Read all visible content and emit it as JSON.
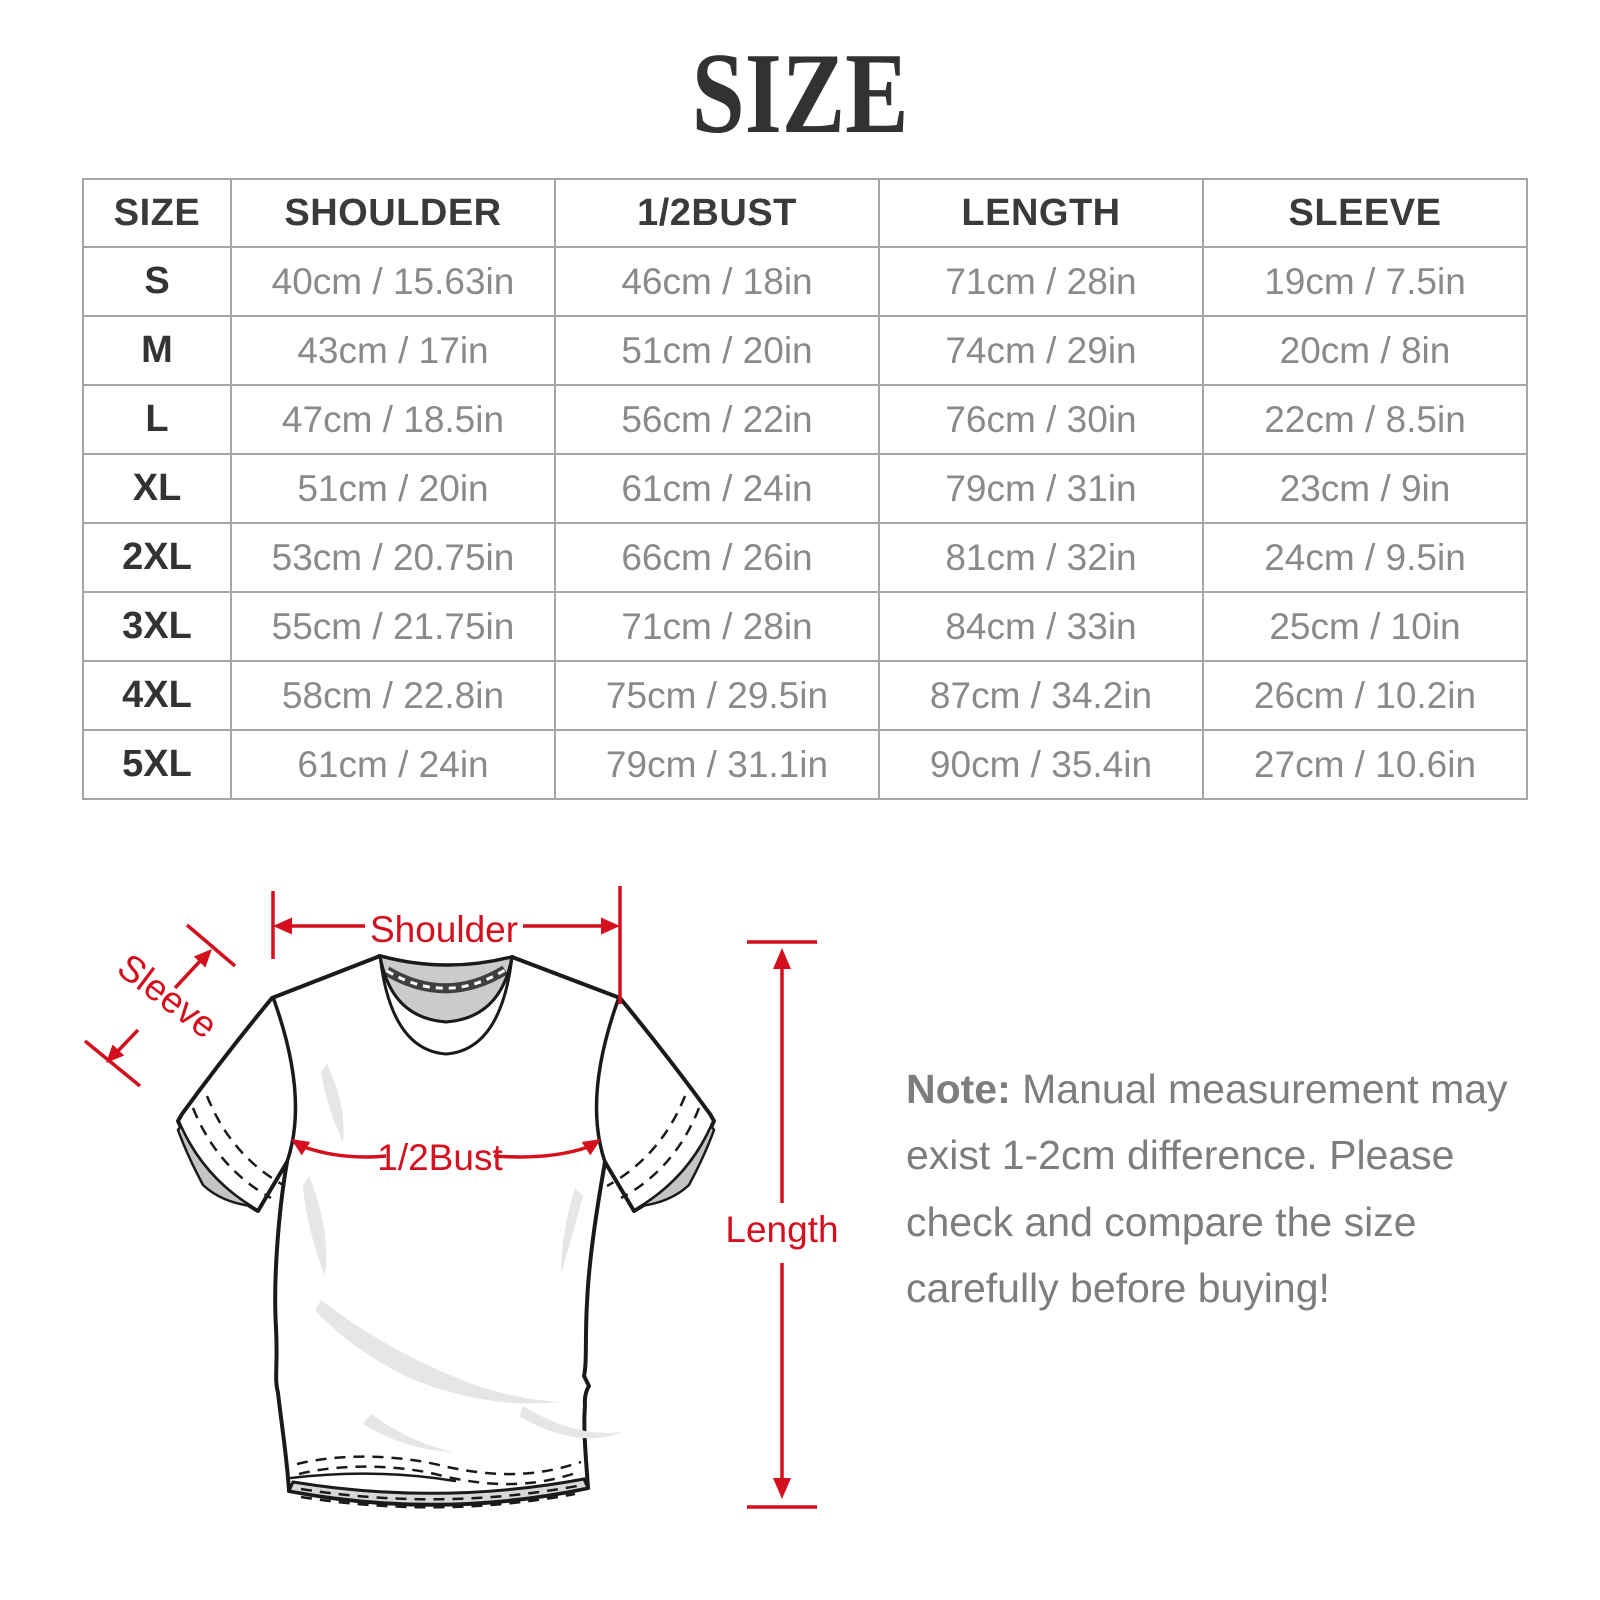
{
  "title": "SIZE",
  "table": {
    "columns": [
      "SIZE",
      "SHOULDER",
      "1/2BUST",
      "LENGTH",
      "SLEEVE"
    ],
    "rows": [
      [
        "S",
        "40cm / 15.63in",
        "46cm / 18in",
        "71cm / 28in",
        "19cm / 7.5in"
      ],
      [
        "M",
        "43cm / 17in",
        "51cm / 20in",
        "74cm / 29in",
        "20cm / 8in"
      ],
      [
        "L",
        "47cm / 18.5in",
        "56cm / 22in",
        "76cm / 30in",
        "22cm / 8.5in"
      ],
      [
        "XL",
        "51cm / 20in",
        "61cm / 24in",
        "79cm / 31in",
        "23cm / 9in"
      ],
      [
        "2XL",
        "53cm / 20.75in",
        "66cm / 26in",
        "81cm / 32in",
        "24cm / 9.5in"
      ],
      [
        "3XL",
        "55cm / 21.75in",
        "71cm / 28in",
        "84cm / 33in",
        "25cm / 10in"
      ],
      [
        "4XL",
        "58cm / 22.8in",
        "75cm / 29.5in",
        "87cm / 34.2in",
        "26cm / 10.2in"
      ],
      [
        "5XL",
        "61cm / 24in",
        "79cm / 31.1in",
        "90cm / 35.4in",
        "27cm / 10.6in"
      ]
    ]
  },
  "diagram": {
    "labels": {
      "shoulder": "Shoulder",
      "sleeve": "Sleeve",
      "bust": "1/2Bust",
      "length": "Length"
    },
    "accent_color": "#d40f1e"
  },
  "note": {
    "prefix": "Note:",
    "body": " Manual measurement may exist 1-2cm difference. Please check and compare the size carefully before buying!"
  },
  "colors": {
    "accent_red": "#d40f1e",
    "title_text": "#323232",
    "table_border": "#a6a6a6",
    "header_text": "#3a3a3a",
    "cell_text": "#8a8a8a",
    "note_text": "#7d7d7d"
  }
}
